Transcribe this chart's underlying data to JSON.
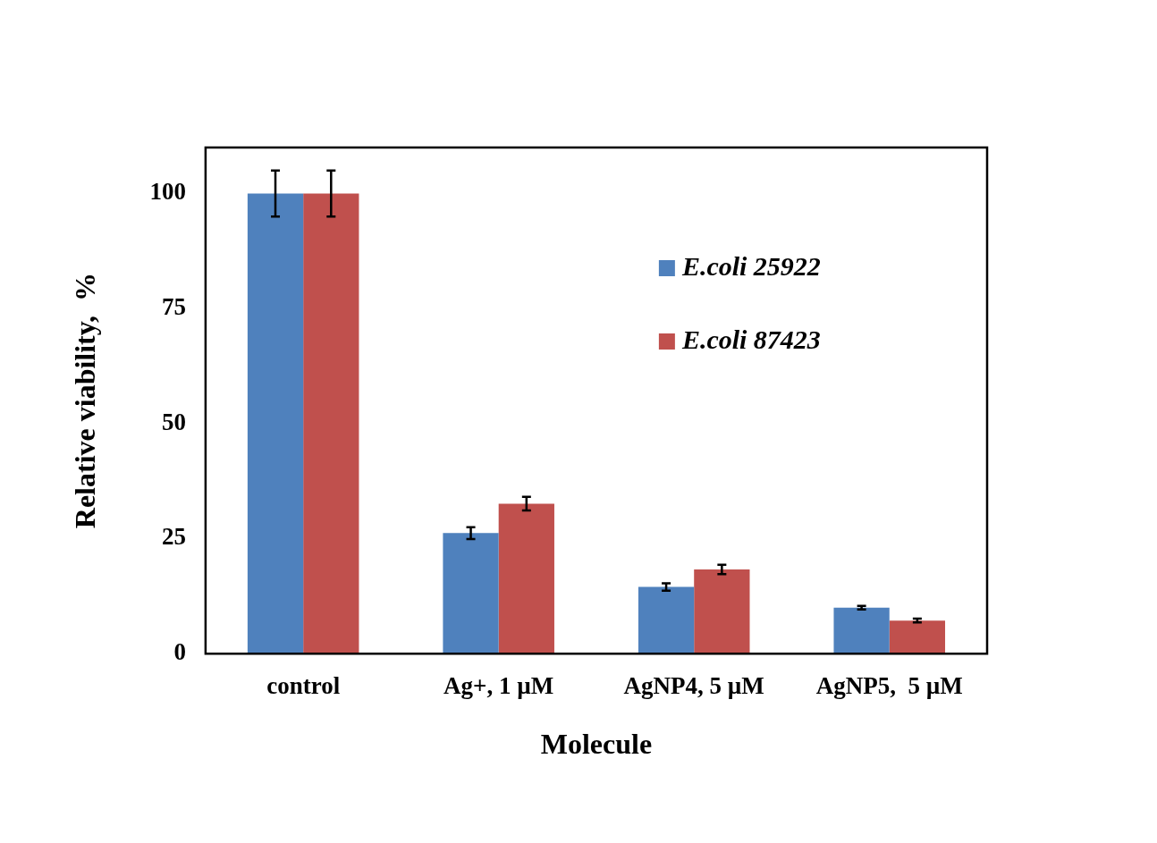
{
  "chart_data": {
    "type": "bar",
    "xlabel": "Molecule",
    "ylabel": "Relative viability,  %",
    "categories": [
      "control",
      "Ag+, 1 µM",
      "AgNP4, 5 µM",
      "AgNP5,  5 µM"
    ],
    "series": [
      {
        "name": "E.coli 25922",
        "color": "#4f81bd",
        "values": [
          100,
          26.2,
          14.5,
          10.0
        ],
        "errors": [
          5,
          1.3,
          0.8,
          0.4
        ]
      },
      {
        "name": "E.coli 87423",
        "color": "#c0504d",
        "values": [
          100,
          32.6,
          18.3,
          7.2
        ],
        "errors": [
          5,
          1.5,
          1,
          0.4
        ]
      }
    ],
    "ylim": [
      0,
      110
    ],
    "yticks": [
      0,
      25,
      50,
      75,
      100
    ],
    "grid": false,
    "legend": "top right"
  }
}
